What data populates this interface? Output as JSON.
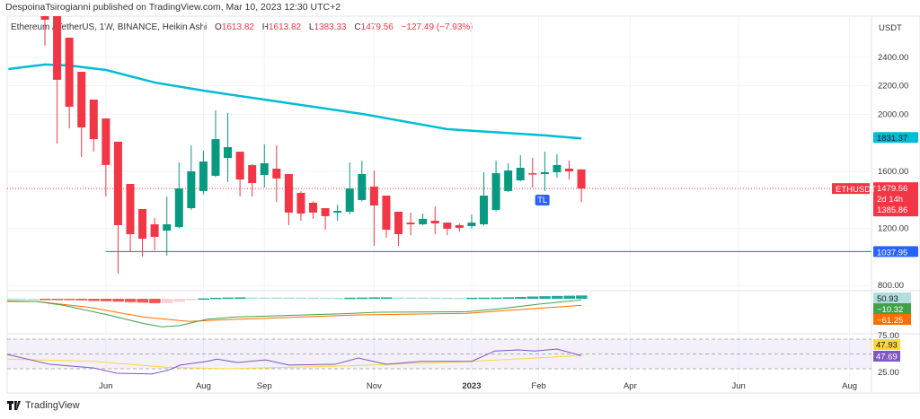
{
  "publisher_line": "DespoinaTsirogianni published on TradingView.com, Mar 10, 2023 12:30 UTC+2",
  "legend": {
    "symbol": "Ethereum / TetherUS, 1W, BINANCE, Heikin Ashi",
    "o_label": "O",
    "o": "1613.82",
    "h_label": "H",
    "h": "1613.82",
    "l_label": "L",
    "l": "1383.33",
    "c_label": "C",
    "c": "1479.56",
    "change": "−127.49 (−7.93%)"
  },
  "footer": {
    "brand": "TradingView"
  },
  "colors": {
    "up": "#089981",
    "down": "#f23645",
    "ma": "#00bcd4",
    "support": "#2962ff",
    "macd": "#43a047",
    "signal": "#ff6d00",
    "rsi": "#7e57c2",
    "rsi_ma": "#fdd835"
  },
  "chart_data": {
    "type": "candlestick",
    "currency_label": "USDT",
    "y_ticks": [
      "2400.00",
      "2200.00",
      "2000.00",
      "1600.00",
      "1200.00",
      "800.00"
    ],
    "y_tick_values": [
      2400,
      2200,
      2000,
      1600,
      1200,
      800
    ],
    "ylim": [
      760,
      2800
    ],
    "x_labels": [
      {
        "t": "Jun",
        "i": 5
      },
      {
        "t": "Aug",
        "i": 13
      },
      {
        "t": "Sep",
        "i": 18
      },
      {
        "t": "Nov",
        "i": 27
      },
      {
        "t": "2023",
        "i": 35
      },
      {
        "t": "Feb",
        "i": 40.5
      },
      {
        "t": "Apr",
        "i": 48
      },
      {
        "t": "Jun",
        "i": 56.9
      },
      {
        "t": "Aug",
        "i": 66
      }
    ],
    "candles": [
      [
        2801,
        2801,
        2481,
        2663
      ],
      [
        2713,
        2750,
        1795,
        2242
      ],
      [
        2537,
        2537,
        1902,
        2053
      ],
      [
        2298,
        2298,
        1701,
        1908
      ],
      [
        2103,
        2103,
        1738,
        1826
      ],
      [
        1971,
        1971,
        1424,
        1645
      ],
      [
        1808,
        1808,
        883,
        1223
      ],
      [
        1512,
        1512,
        1040,
        1160
      ],
      [
        1336,
        1336,
        1003,
        1128
      ],
      [
        1229,
        1273,
        1047,
        1141
      ],
      [
        1185,
        1424,
        1009,
        1229
      ],
      [
        1210,
        1663,
        1200,
        1480
      ],
      [
        1342,
        1782,
        1330,
        1600
      ],
      [
        1462,
        1745,
        1440,
        1669
      ],
      [
        1569,
        2028,
        1560,
        1826
      ],
      [
        1694,
        2009,
        1525,
        1770
      ],
      [
        1738,
        1738,
        1424,
        1543
      ],
      [
        1644,
        1650,
        1424,
        1518
      ],
      [
        1575,
        1789,
        1487,
        1657
      ],
      [
        1619,
        1782,
        1386,
        1550
      ],
      [
        1581,
        1581,
        1223,
        1311
      ],
      [
        1449,
        1460,
        1254,
        1304
      ],
      [
        1380,
        1390,
        1267,
        1311
      ],
      [
        1342,
        1342,
        1191,
        1286
      ],
      [
        1311,
        1367,
        1254,
        1323
      ],
      [
        1317,
        1663,
        1300,
        1480
      ],
      [
        1399,
        1675,
        1390,
        1581
      ],
      [
        1493,
        1606,
        1078,
        1361
      ],
      [
        1430,
        1430,
        1135,
        1191
      ],
      [
        1317,
        1317,
        1078,
        1160
      ],
      [
        1241,
        1311,
        1153,
        1229
      ],
      [
        1229,
        1304,
        1223,
        1267
      ],
      [
        1254,
        1355,
        1160,
        1235
      ],
      [
        1241,
        1241,
        1153,
        1198
      ],
      [
        1223,
        1235,
        1179,
        1204
      ],
      [
        1216,
        1298,
        1198,
        1241
      ],
      [
        1229,
        1594,
        1220,
        1430
      ],
      [
        1330,
        1675,
        1320,
        1587
      ],
      [
        1462,
        1657,
        1455,
        1606
      ],
      [
        1537,
        1713,
        1530,
        1625
      ],
      [
        1587,
        1694,
        1487,
        1581
      ],
      [
        1581,
        1738,
        1462,
        1594
      ],
      [
        1594,
        1720,
        1556,
        1644
      ],
      [
        1619,
        1675,
        1543,
        1600
      ],
      [
        1613.82,
        1613.82,
        1383.33,
        1479.56
      ]
    ],
    "ma": [
      [
        -3,
        2317
      ],
      [
        0,
        2349
      ],
      [
        2,
        2342
      ],
      [
        5,
        2311
      ],
      [
        9,
        2223
      ],
      [
        13,
        2166
      ],
      [
        18,
        2103
      ],
      [
        26,
        2003
      ],
      [
        33,
        1896
      ],
      [
        41,
        1852
      ],
      [
        44,
        1831.37
      ]
    ],
    "ma_label": "1831.37",
    "support_level": 1037.95,
    "support_start_index": 5,
    "support_label": "1037.95",
    "last_price": 1479.56,
    "symbol_tag": "ETHUSDT",
    "price_tag": "1479.56",
    "countdown": "2d 14h",
    "low_tag": "1385.86",
    "tl_badge": "TL",
    "tl_index": 40.8,
    "macd": {
      "macd_line": [
        [
          -3.1,
          -20
        ],
        [
          -0.7,
          -25
        ],
        [
          1.5,
          -60
        ],
        [
          5.2,
          -150
        ],
        [
          8.1,
          -230
        ],
        [
          9.6,
          -260
        ],
        [
          11,
          -250
        ],
        [
          13.3,
          -190
        ],
        [
          15.5,
          -170
        ],
        [
          18.4,
          -160
        ],
        [
          24.3,
          -140
        ],
        [
          27.3,
          -125
        ],
        [
          34.6,
          -120
        ],
        [
          37.6,
          -90
        ],
        [
          40.5,
          -50
        ],
        [
          44,
          -10
        ]
      ],
      "signal_line": [
        [
          -3.1,
          -25
        ],
        [
          -0.7,
          -25
        ],
        [
          3.7,
          -80
        ],
        [
          8.1,
          -170
        ],
        [
          11.8,
          -210
        ],
        [
          14.7,
          -195
        ],
        [
          18.4,
          -180
        ],
        [
          25.8,
          -150
        ],
        [
          34.6,
          -135
        ],
        [
          37.6,
          -110
        ],
        [
          44,
          -61
        ]
      ],
      "hist_label": "50.93",
      "macd_label": "−10.32",
      "signal_label": "−61.25"
    },
    "rsi": {
      "line": [
        [
          -3.7,
          49.4
        ],
        [
          0.4,
          36
        ],
        [
          4,
          31
        ],
        [
          5.9,
          24
        ],
        [
          8.8,
          23
        ],
        [
          10.1,
          28
        ],
        [
          11.1,
          35
        ],
        [
          13.3,
          40
        ],
        [
          14.1,
          43
        ],
        [
          15.8,
          38.5
        ],
        [
          18.1,
          42
        ],
        [
          20,
          35
        ],
        [
          23.8,
          36
        ],
        [
          25.7,
          44.5
        ],
        [
          28,
          36
        ],
        [
          30.9,
          40
        ],
        [
          35,
          40
        ],
        [
          36.9,
          54
        ],
        [
          38.8,
          55.5
        ],
        [
          40.2,
          54
        ],
        [
          42,
          56.7
        ],
        [
          44,
          47.7
        ]
      ],
      "ma_line": [
        [
          -3.7,
          43
        ],
        [
          4,
          40
        ],
        [
          10,
          32
        ],
        [
          15,
          30
        ],
        [
          25,
          34
        ],
        [
          35,
          40
        ],
        [
          44,
          47.9
        ]
      ],
      "ticks": [
        "75.00",
        "25.00"
      ],
      "rsi_label": "47.69",
      "ma_label": "47.93"
    }
  }
}
